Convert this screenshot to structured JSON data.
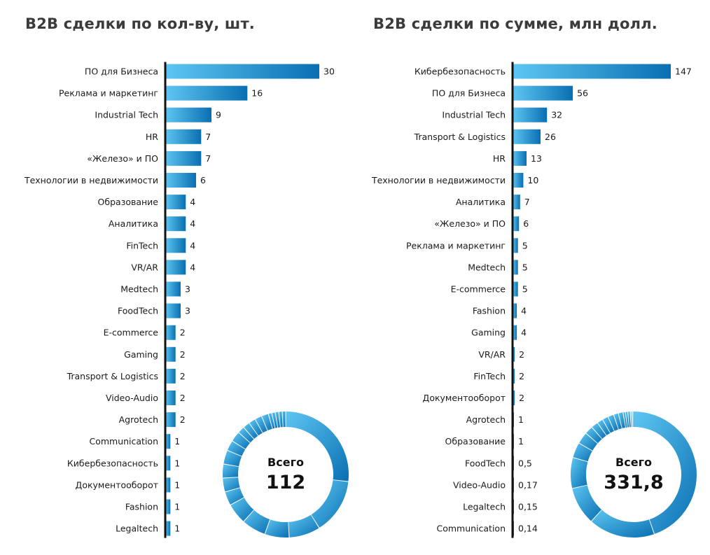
{
  "colors": {
    "bar_dark": "#0a6fb2",
    "bar_light": "#5ec6f2",
    "axis": "#111111"
  },
  "chart_data": [
    {
      "type": "bar",
      "orientation": "horizontal",
      "title": "B2B сделки по кол-ву, шт.",
      "categories": [
        "ПО для Бизнеса",
        "Реклама и маркетинг",
        "Industrial Tech",
        "HR",
        "«Железо» и ПО",
        "Технологии в недвижимости",
        "Образование",
        "Аналитика",
        "FinTech",
        "VR/AR",
        "Medtech",
        "FoodTech",
        "E-commerce",
        "Gaming",
        "Transport & Logistics",
        "Video-Audio",
        "Agrotech",
        "Communication",
        "Кибербезопасность",
        "Документооборот",
        "Fashion",
        "Legaltech"
      ],
      "values": [
        30,
        16,
        9,
        7,
        7,
        6,
        4,
        4,
        4,
        4,
        3,
        3,
        2,
        2,
        2,
        2,
        2,
        1,
        1,
        1,
        1,
        1
      ],
      "value_labels": [
        "30",
        "16",
        "9",
        "7",
        "7",
        "6",
        "4",
        "4",
        "4",
        "4",
        "3",
        "3",
        "2",
        "2",
        "2",
        "2",
        "2",
        "1",
        "1",
        "1",
        "1",
        "1"
      ],
      "total": {
        "title": "Всего",
        "value": "112"
      }
    },
    {
      "type": "bar",
      "orientation": "horizontal",
      "title": "B2B сделки по сумме, млн долл.",
      "categories": [
        "Кибербезопасность",
        "ПО для Бизнеса",
        "Industrial Tech",
        "Transport & Logistics",
        "HR",
        "Технологии в недвижимости",
        "Аналитика",
        "«Железо» и ПО",
        "Реклама и маркетинг",
        "Medtech",
        "E-commerce",
        "Fashion",
        "Gaming",
        "VR/AR",
        "FinTech",
        "Документооборот",
        "Agrotech",
        "Образование",
        "FoodTech",
        "Video-Audio",
        "Legaltech",
        "Communication"
      ],
      "values": [
        147,
        56,
        32,
        26,
        13,
        10,
        7,
        6,
        5,
        5,
        5,
        4,
        4,
        2,
        2,
        2,
        1,
        1,
        0.5,
        0.17,
        0.15,
        0.14
      ],
      "value_labels": [
        "147",
        "56",
        "32",
        "26",
        "13",
        "10",
        "7",
        "6",
        "5",
        "5",
        "5",
        "4",
        "4",
        "2",
        "2",
        "2",
        "1",
        "1",
        "0,5",
        "0,17",
        "0,15",
        "0,14"
      ],
      "total": {
        "title": "Всего",
        "value": "331,8"
      }
    }
  ]
}
